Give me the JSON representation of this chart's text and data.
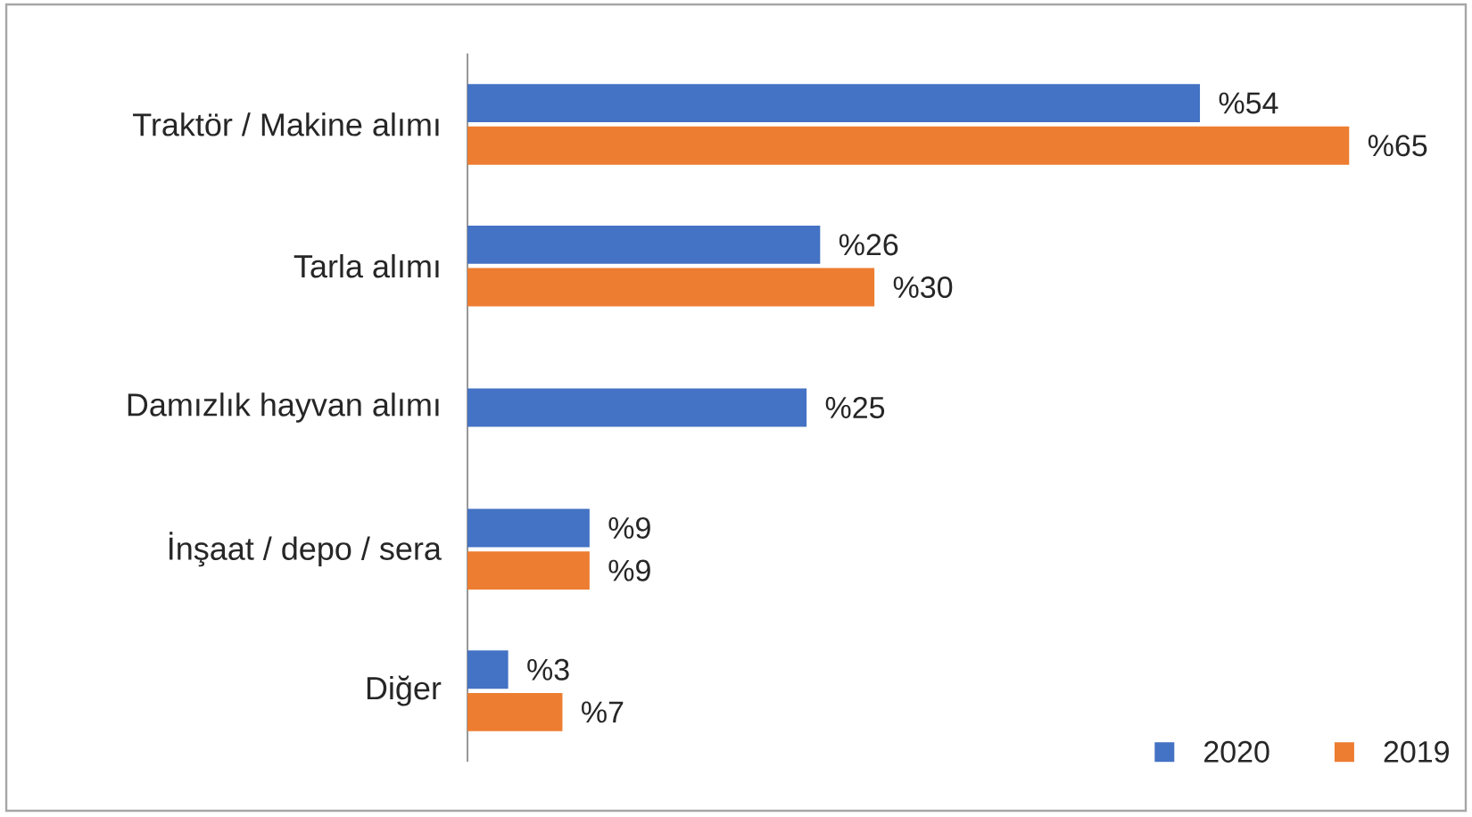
{
  "chart_data": {
    "type": "bar",
    "orientation": "horizontal",
    "categories": [
      "Traktör / Makine alımı",
      "Tarla alımı",
      "Damızlık hayvan alımı",
      "İnşaat / depo / sera",
      "Diğer"
    ],
    "series": [
      {
        "name": "2020",
        "color": "#4472c4",
        "values": [
          54,
          26,
          25,
          9,
          3
        ],
        "value_labels": [
          "%54",
          "%26",
          "%25",
          "%9",
          "%3"
        ]
      },
      {
        "name": "2019",
        "color": "#ed7d31",
        "values": [
          65,
          30,
          null,
          9,
          7
        ],
        "value_labels": [
          "%65",
          "%30",
          null,
          "%9",
          "%7"
        ]
      }
    ],
    "legend": "bottom right"
  }
}
